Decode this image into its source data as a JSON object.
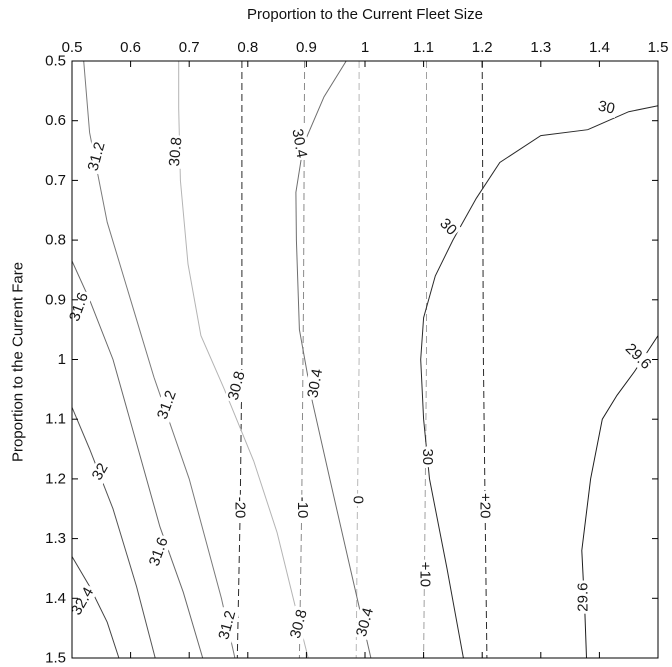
{
  "chart_data": {
    "type": "contour",
    "xlabel": "Proportion to the Current Fleet Size",
    "ylabel": "Proportion to the Current Fare",
    "xlim": [
      0.5,
      1.5
    ],
    "ylim": [
      0.5,
      1.5
    ],
    "x_axis_position": "top",
    "y_axis_inverted": true,
    "xticks": [
      0.5,
      0.6,
      0.7,
      0.8,
      0.9,
      1,
      1.1,
      1.2,
      1.3,
      1.4,
      1.5
    ],
    "yticks": [
      0.5,
      0.6,
      0.7,
      0.8,
      0.9,
      1,
      1.1,
      1.2,
      1.3,
      1.4,
      1.5
    ],
    "xtick_labels": [
      "0.5",
      "0.6",
      "0.7",
      "0.8",
      "0.9",
      "1",
      "1.1",
      "1.2",
      "1.3",
      "1.4",
      "1.5"
    ],
    "ytick_labels": [
      "0.5",
      "0.6",
      "0.7",
      "0.8",
      "0.9",
      "1",
      "1.1",
      "1.2",
      "1.3",
      "1.4",
      "1.5"
    ],
    "grid": false,
    "solid_contours": [
      {
        "level": "32.4",
        "color": "#444444",
        "points": [
          [
            0.5,
            1.33
          ],
          [
            0.53,
            1.38
          ],
          [
            0.56,
            1.44
          ],
          [
            0.58,
            1.5
          ]
        ],
        "labels": [
          {
            "x": 0.518,
            "y": 1.405,
            "angle": -60
          }
        ]
      },
      {
        "level": "32",
        "color": "#555555",
        "points": [
          [
            0.5,
            1.08
          ],
          [
            0.53,
            1.15
          ],
          [
            0.57,
            1.25
          ],
          [
            0.61,
            1.38
          ],
          [
            0.642,
            1.5
          ]
        ],
        "labels": [
          {
            "x": 0.548,
            "y": 1.188,
            "angle": -60
          }
        ]
      },
      {
        "level": "31.6",
        "color": "#6a6a6a",
        "points": [
          [
            0.5,
            0.835
          ],
          [
            0.53,
            0.9
          ],
          [
            0.57,
            1.0
          ],
          [
            0.61,
            1.14
          ],
          [
            0.65,
            1.28
          ],
          [
            0.69,
            1.39
          ],
          [
            0.723,
            1.5
          ]
        ],
        "labels": [
          {
            "x": 0.512,
            "y": 0.912,
            "angle": -70
          },
          {
            "x": 0.648,
            "y": 1.322,
            "angle": -70
          }
        ]
      },
      {
        "level": "31.2",
        "color": "#7a7a7a",
        "points": [
          [
            0.52,
            0.5
          ],
          [
            0.53,
            0.62
          ],
          [
            0.56,
            0.77
          ],
          [
            0.6,
            0.9
          ],
          [
            0.64,
            1.03
          ],
          [
            0.7,
            1.2
          ],
          [
            0.755,
            1.4
          ],
          [
            0.778,
            1.5
          ]
        ],
        "labels": [
          {
            "x": 0.542,
            "y": 0.66,
            "angle": -75
          },
          {
            "x": 0.662,
            "y": 1.076,
            "angle": -70
          },
          {
            "x": 0.765,
            "y": 1.445,
            "angle": -75
          }
        ]
      },
      {
        "level": "30.8",
        "color": "#b4b4b4",
        "points": [
          [
            0.682,
            0.5
          ],
          [
            0.682,
            0.58
          ],
          [
            0.685,
            0.7
          ],
          [
            0.698,
            0.84
          ],
          [
            0.72,
            0.96
          ],
          [
            0.76,
            1.05
          ],
          [
            0.81,
            1.17
          ],
          [
            0.85,
            1.29
          ],
          [
            0.88,
            1.41
          ],
          [
            0.903,
            1.5
          ]
        ],
        "labels": [
          {
            "x": 0.677,
            "y": 0.652,
            "angle": -85
          },
          {
            "x": 0.781,
            "y": 1.044,
            "angle": -75
          },
          {
            "x": 0.887,
            "y": 1.443,
            "angle": -75
          }
        ]
      },
      {
        "level": "30.4",
        "color": "#6e6e6e",
        "points": [
          [
            0.968,
            0.5
          ],
          [
            0.93,
            0.56
          ],
          [
            0.895,
            0.64
          ],
          [
            0.882,
            0.72
          ],
          [
            0.883,
            0.8
          ],
          [
            0.888,
            0.95
          ],
          [
            0.91,
            1.07
          ],
          [
            0.94,
            1.2
          ],
          [
            0.975,
            1.35
          ],
          [
            1.01,
            1.5
          ]
        ],
        "labels": [
          {
            "x": 0.888,
            "y": 0.638,
            "angle": 80
          },
          {
            "x": 0.915,
            "y": 1.04,
            "angle": -80
          },
          {
            "x": 1.0,
            "y": 1.44,
            "angle": -75
          }
        ]
      },
      {
        "level": "30",
        "color": "#2a2a2a",
        "points": [
          [
            1.5,
            0.575
          ],
          [
            1.45,
            0.585
          ],
          [
            1.38,
            0.615
          ],
          [
            1.3,
            0.625
          ],
          [
            1.23,
            0.67
          ],
          [
            1.19,
            0.73
          ],
          [
            1.15,
            0.8
          ],
          [
            1.12,
            0.86
          ],
          [
            1.1,
            0.93
          ],
          [
            1.095,
            1.0
          ],
          [
            1.1,
            1.1
          ],
          [
            1.11,
            1.2
          ],
          [
            1.14,
            1.35
          ],
          [
            1.168,
            1.5
          ]
        ],
        "labels": [
          {
            "x": 1.412,
            "y": 0.578,
            "angle": 12
          },
          {
            "x": 1.142,
            "y": 0.778,
            "angle": 45
          },
          {
            "x": 1.107,
            "y": 1.163,
            "angle": 90
          }
        ]
      },
      {
        "level": "29.6",
        "color": "#1e1e1e",
        "points": [
          [
            1.5,
            0.96
          ],
          [
            1.46,
            1.02
          ],
          [
            1.43,
            1.06
          ],
          [
            1.405,
            1.1
          ],
          [
            1.385,
            1.2
          ],
          [
            1.37,
            1.32
          ],
          [
            1.375,
            1.42
          ],
          [
            1.378,
            1.5
          ]
        ],
        "labels": [
          {
            "x": 1.466,
            "y": 0.995,
            "angle": 45
          },
          {
            "x": 1.372,
            "y": 1.398,
            "angle": -90
          }
        ]
      }
    ],
    "dashed_contours": [
      {
        "level": "-20",
        "color": "#2a2a2a",
        "points": [
          [
            0.79,
            0.5
          ],
          [
            0.79,
            1.0
          ],
          [
            0.787,
            1.25
          ],
          [
            0.782,
            1.5
          ]
        ],
        "labels": [
          {
            "x": 0.787,
            "y": 1.248,
            "angle": 90
          }
        ]
      },
      {
        "level": "-10",
        "color": "#8a8a8a",
        "points": [
          [
            0.897,
            0.5
          ],
          [
            0.895,
            0.9
          ],
          [
            0.892,
            1.25
          ],
          [
            0.888,
            1.5
          ]
        ],
        "labels": [
          {
            "x": 0.893,
            "y": 1.248,
            "angle": 90
          }
        ]
      },
      {
        "level": "0",
        "color": "#b8b8b8",
        "points": [
          [
            0.99,
            0.5
          ],
          [
            0.99,
            1.0
          ],
          [
            0.987,
            1.25
          ],
          [
            0.985,
            1.5
          ]
        ],
        "labels": [
          {
            "x": 0.988,
            "y": 1.235,
            "angle": 90
          }
        ]
      },
      {
        "level": "+10",
        "color": "#a0a0a0",
        "points": [
          [
            1.105,
            0.5
          ],
          [
            1.105,
            1.0
          ],
          [
            1.102,
            1.3
          ],
          [
            1.1,
            1.5
          ]
        ],
        "labels": [
          {
            "x": 1.102,
            "y": 1.36,
            "angle": 90
          }
        ]
      },
      {
        "level": "+20",
        "color": "#2a2a2a",
        "points": [
          [
            1.2,
            0.5
          ],
          [
            1.202,
            1.0
          ],
          [
            1.205,
            1.25
          ],
          [
            1.208,
            1.5
          ]
        ],
        "labels": [
          {
            "x": 1.205,
            "y": 1.245,
            "angle": 90
          }
        ]
      }
    ]
  }
}
